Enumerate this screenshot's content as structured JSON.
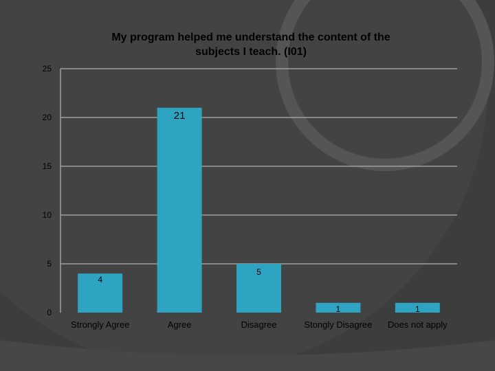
{
  "chart_data": {
    "type": "bar",
    "title": "My program helped me understand the content of the",
    "subtitle": "subjects I teach. (I01)",
    "categories": [
      "Strongly Agree",
      "Agree",
      "Disagree",
      "Stongly Disagree",
      "Does not apply"
    ],
    "values": [
      4,
      21,
      5,
      1,
      1
    ],
    "data_labels": [
      "4",
      "21",
      "5",
      "1",
      "1"
    ],
    "ylim": [
      0,
      25
    ],
    "yticks": [
      0,
      5,
      10,
      15,
      20,
      25
    ],
    "ytick_labels": [
      "0",
      "5",
      "10",
      "15",
      "20",
      "25"
    ],
    "xlabel": "",
    "ylabel": "",
    "grid": true,
    "legend": "none"
  },
  "colors": {
    "background": "#3d3d3d",
    "bar": "#2ea3c2",
    "grid": "#a0a0a0",
    "text": "#000000",
    "decor_light": "#5a5a5a",
    "decor_arc": "#6a6a6a"
  }
}
